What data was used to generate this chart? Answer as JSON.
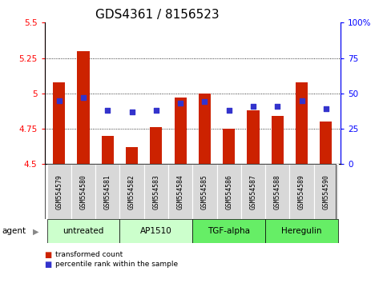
{
  "title": "GDS4361 / 8156523",
  "samples": [
    "GSM554579",
    "GSM554580",
    "GSM554581",
    "GSM554582",
    "GSM554583",
    "GSM554584",
    "GSM554585",
    "GSM554586",
    "GSM554587",
    "GSM554588",
    "GSM554589",
    "GSM554590"
  ],
  "bar_values": [
    5.08,
    5.3,
    4.7,
    4.62,
    4.76,
    4.97,
    5.0,
    4.75,
    4.88,
    4.84,
    5.08,
    4.8
  ],
  "dot_percentiles": [
    45,
    47,
    38,
    37,
    38,
    43,
    44,
    38,
    41,
    41,
    45,
    39
  ],
  "ymin": 4.5,
  "ymax": 5.5,
  "yticks": [
    4.5,
    4.75,
    5.0,
    5.25,
    5.5
  ],
  "ytick_labels_left": [
    "4.5",
    "4.75",
    "5",
    "5.25",
    "5.5"
  ],
  "y2ticks": [
    0,
    25,
    50,
    75,
    100
  ],
  "y2tick_labels": [
    "0",
    "25",
    "50",
    "75",
    "100%"
  ],
  "bar_color": "#cc2200",
  "dot_color": "#3333cc",
  "bar_bottom": 4.5,
  "groups": [
    {
      "label": "untreated",
      "start": 0,
      "end": 3,
      "color": "#ccffcc"
    },
    {
      "label": "AP1510",
      "start": 3,
      "end": 6,
      "color": "#ccffcc"
    },
    {
      "label": "TGF-alpha",
      "start": 6,
      "end": 9,
      "color": "#66ee66"
    },
    {
      "label": "Heregulin",
      "start": 9,
      "end": 12,
      "color": "#66ee66"
    }
  ],
  "legend_bar_label": "transformed count",
  "legend_dot_label": "percentile rank within the sample",
  "agent_label": "agent",
  "sample_box_color": "#d8d8d8",
  "grid_yticks": [
    4.75,
    5.0,
    5.25
  ],
  "title_fontsize": 11,
  "bar_width": 0.5
}
